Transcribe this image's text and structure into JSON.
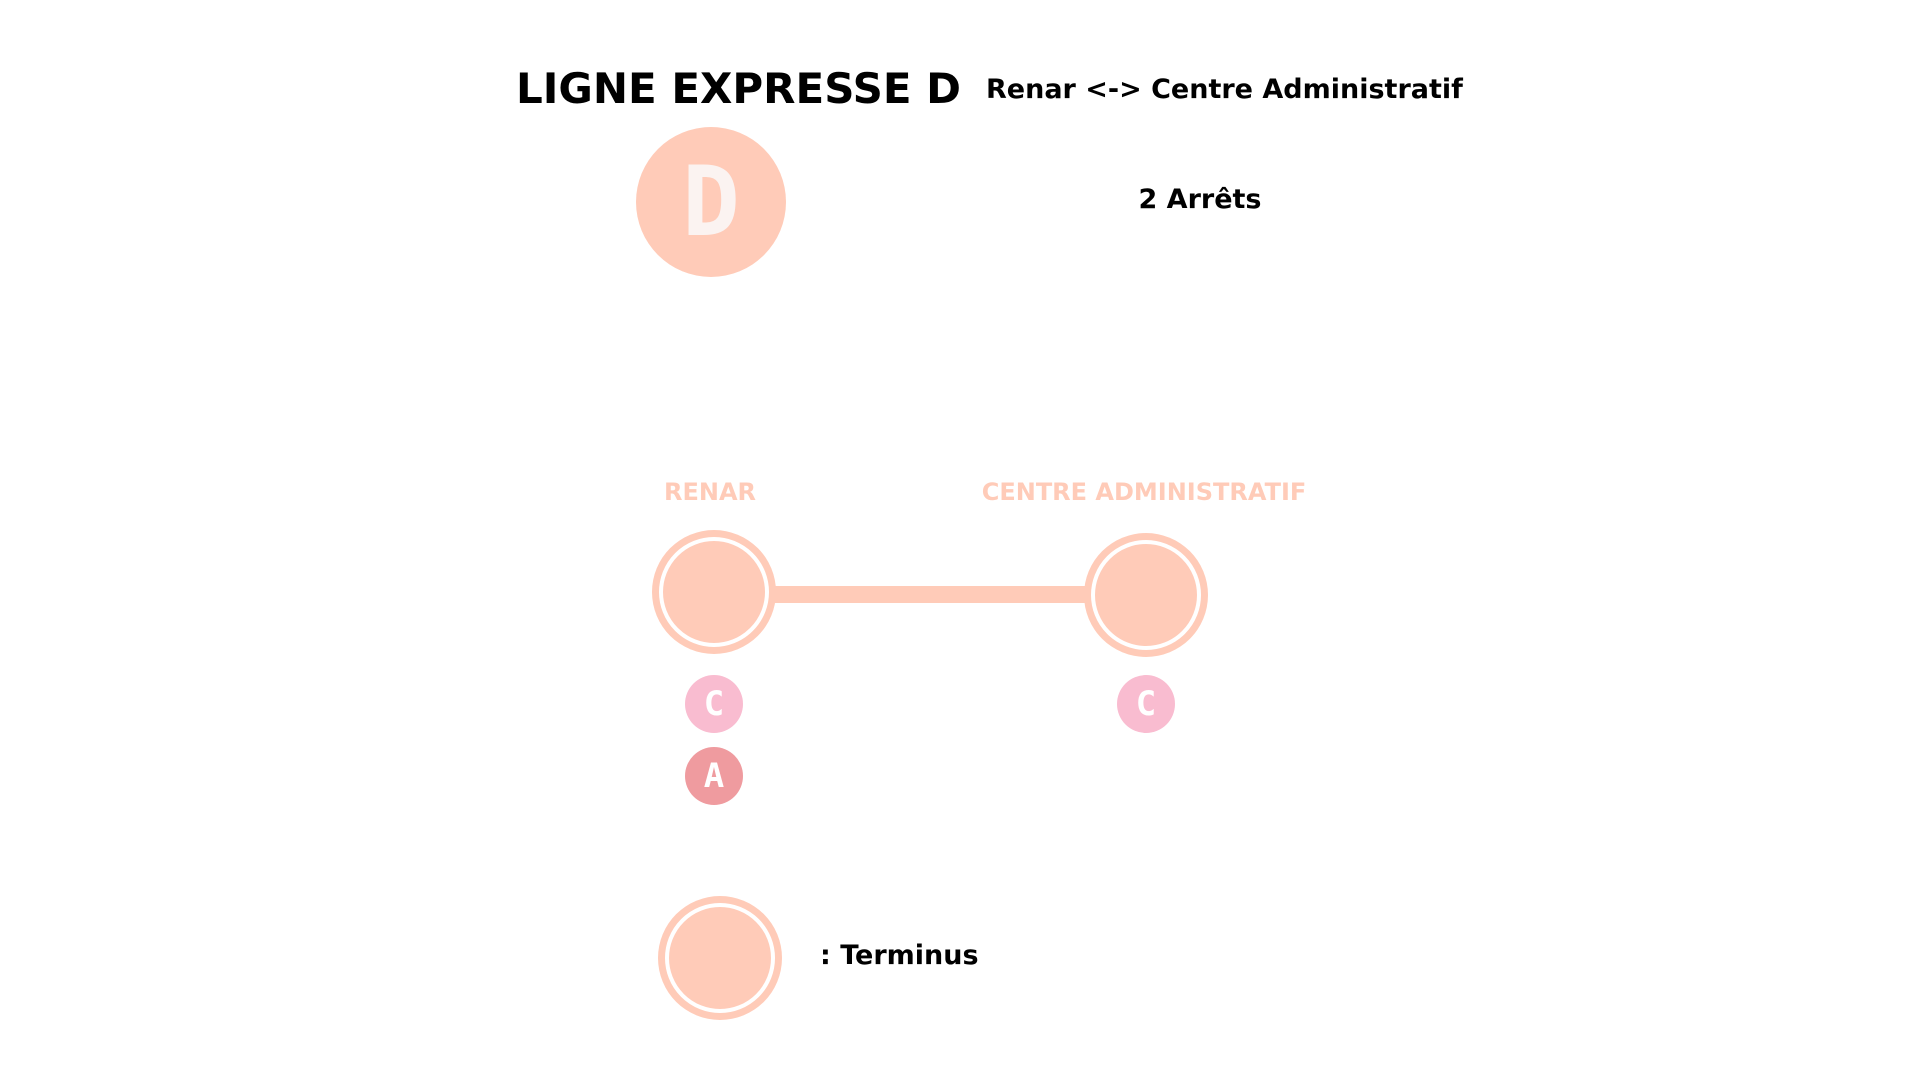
{
  "header": {
    "title": "LIGNE EXPRESSE D",
    "route": "Renar <-> Centre Administratif",
    "stops_count": "2 Arrêts"
  },
  "line": {
    "letter": "D",
    "color": "#ffcbb8",
    "letter_color": "#fbf3f1"
  },
  "stops": [
    {
      "name": "RENAR",
      "connections": [
        {
          "letter": "C",
          "color": "#f9bcd0"
        },
        {
          "letter": "A",
          "color": "#ef9b9f"
        }
      ]
    },
    {
      "name": "CENTRE ADMINISTRATIF",
      "connections": [
        {
          "letter": "C",
          "color": "#f9bcd0"
        }
      ]
    }
  ],
  "legend": {
    "terminus_label": ": Terminus"
  }
}
